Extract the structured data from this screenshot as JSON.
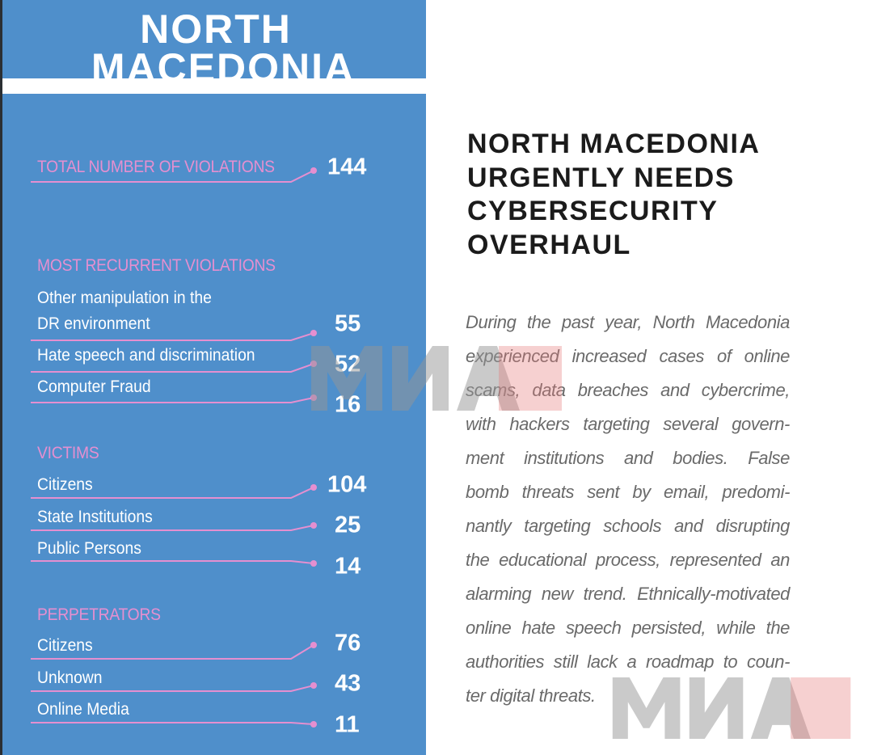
{
  "title": {
    "line1": "NORTH",
    "line2": "MACEDONIA"
  },
  "total": {
    "label": "TOTAL NUMBER OF VIOLATIONS",
    "value": "144"
  },
  "sections": [
    {
      "heading": "MOST RECURRENT VIOLATIONS",
      "items": [
        {
          "label_lines": [
            "Other manipulation in the",
            "DR environment"
          ],
          "value": "55"
        },
        {
          "label_lines": [
            "Hate speech and discrimination"
          ],
          "value": "52"
        },
        {
          "label_lines": [
            "Computer Fraud"
          ],
          "value": "16"
        }
      ]
    },
    {
      "heading": "VICTIMS",
      "items": [
        {
          "label_lines": [
            "Citizens"
          ],
          "value": "104"
        },
        {
          "label_lines": [
            "State Institutions"
          ],
          "value": "25"
        },
        {
          "label_lines": [
            "Public Persons"
          ],
          "value": "14"
        }
      ]
    },
    {
      "heading": "PERPETRATORS",
      "items": [
        {
          "label_lines": [
            "Citizens"
          ],
          "value": "76"
        },
        {
          "label_lines": [
            "Unknown"
          ],
          "value": "43"
        },
        {
          "label_lines": [
            "Online Media"
          ],
          "value": "11"
        }
      ]
    }
  ],
  "article": {
    "headline_lines": [
      "NORTH MACEDONIA",
      "URGENTLY NEEDS",
      "CYBERSECURITY",
      "OVERHAUL"
    ],
    "body_lines": [
      "During the past year, North Macedonia",
      "experienced increased cases of online",
      "scams, data breaches and cybercrime,",
      "with hackers targeting several govern-",
      "ment institutions and bodies. False",
      "bomb threats sent by email, predomi-",
      "nantly targeting schools and disrupting",
      "the educational process, represented an",
      "alarming new trend. Ethnically-motivated",
      "online hate speech persisted, while the",
      "authorities still lack a roadmap to coun-",
      "ter digital threats."
    ]
  },
  "watermark": "МИА",
  "colors": {
    "panel": "#4f8fcb",
    "accent": "#e58fd0",
    "text": "#1b1b1b",
    "body": "#6a6a6a"
  }
}
